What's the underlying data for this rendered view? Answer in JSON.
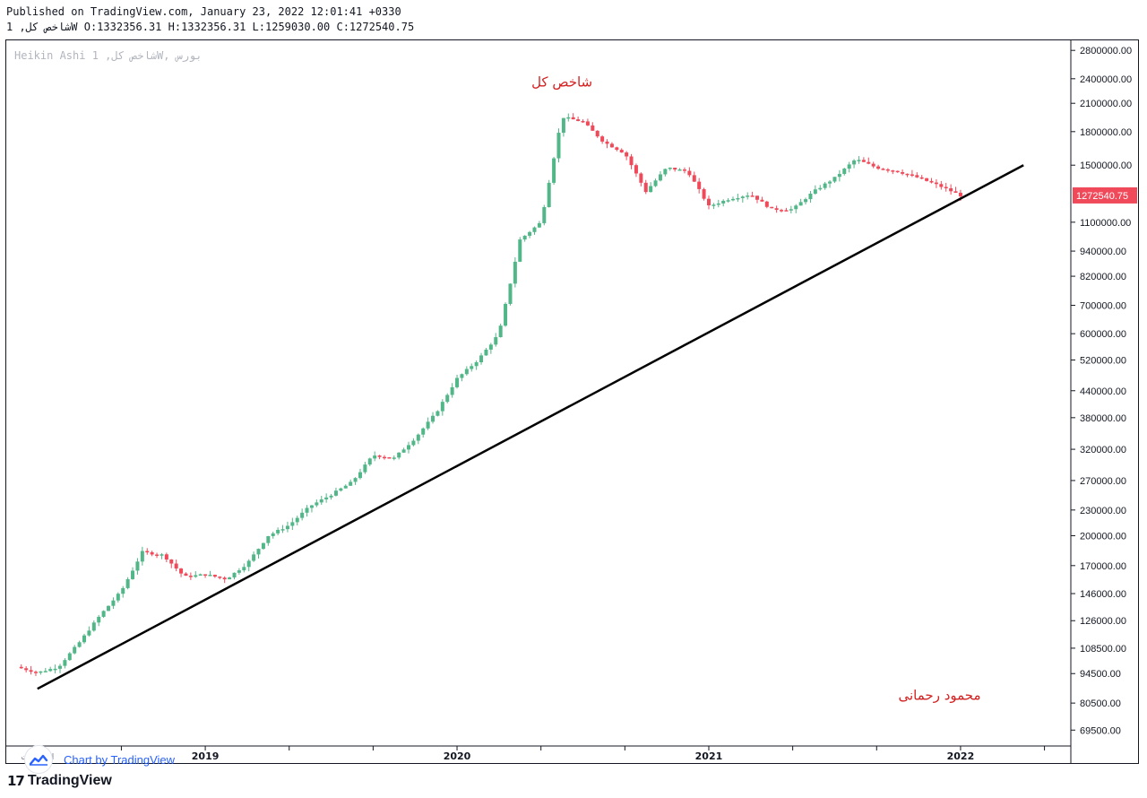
{
  "header": {
    "published": "Published on TradingView.com, January 23, 2022 12:01:41 +0330",
    "ohlc_line": "شاخص کل, 1W O:1332356.31 H:1332356.31 L:1259030.00 C:1272540.75"
  },
  "watermark": "Heikin Ashi شاخص کل, 1W, بورس",
  "attribution": {
    "text": "Chart by TradingView",
    "icon": "tradingview-cloud-icon"
  },
  "brand": {
    "mark": "17",
    "name": "TradingView"
  },
  "colors": {
    "up": "#52b788",
    "down": "#f04a5a",
    "trendline": "#000000",
    "annotation": "#d42020",
    "price_label_bg": "#f04a5a"
  },
  "chart_data": {
    "type": "candlestick",
    "style": "Heikin Ashi",
    "symbol": "شاخص کل",
    "interval": "1W",
    "ohlc_last": {
      "open": 1332356.31,
      "high": 1332356.31,
      "low": 1259030.0,
      "close": 1272540.75
    },
    "last_price_label": "1272540.75",
    "y_axis": {
      "scale": "log",
      "ticks": [
        "2800000.00",
        "2400000.00",
        "2100000.00",
        "1800000.00",
        "1500000.00",
        "1100000.00",
        "940000.00",
        "820000.00",
        "700000.00",
        "600000.00",
        "520000.00",
        "440000.00",
        "380000.00",
        "320000.00",
        "270000.00",
        "230000.00",
        "200000.00",
        "170000.00",
        "146000.00",
        "126000.00",
        "108500.00",
        "94500.00",
        "80500.00",
        "69500.00"
      ]
    },
    "x_axis": {
      "ticks": [
        "اردیبهشت",
        "2019",
        "2020",
        "2021",
        "2022"
      ],
      "range": [
        "2018-04",
        "2022-06"
      ]
    },
    "annotations": [
      {
        "text": "شاخص کل",
        "at": [
          "2020-06",
          2300000
        ]
      },
      {
        "text": "محمود رحمانی",
        "at": [
          "2021-12",
          82000
        ]
      }
    ],
    "trendline": {
      "from": [
        "2018-05",
        87000
      ],
      "to": [
        "2022-04",
        1500000
      ]
    },
    "series": [
      {
        "name": "Heikin Ashi",
        "anchors": [
          [
            "2018-04",
            98000
          ],
          [
            "2018-05",
            95000
          ],
          [
            "2018-06",
            98000
          ],
          [
            "2018-07",
            112000
          ],
          [
            "2018-08",
            130000
          ],
          [
            "2018-09",
            148000
          ],
          [
            "2018-10",
            183000
          ],
          [
            "2018-11",
            180000
          ],
          [
            "2018-12",
            160000
          ],
          [
            "2019-01",
            162000
          ],
          [
            "2019-02",
            158000
          ],
          [
            "2019-03",
            172000
          ],
          [
            "2019-04",
            200000
          ],
          [
            "2019-05",
            212000
          ],
          [
            "2019-06",
            235000
          ],
          [
            "2019-07",
            250000
          ],
          [
            "2019-08",
            268000
          ],
          [
            "2019-09",
            310000
          ],
          [
            "2019-10",
            305000
          ],
          [
            "2019-11",
            340000
          ],
          [
            "2019-12",
            390000
          ],
          [
            "2020-01",
            470000
          ],
          [
            "2020-02",
            520000
          ],
          [
            "2020-03",
            600000
          ],
          [
            "2020-04",
            1000000
          ],
          [
            "2020-05",
            1100000
          ],
          [
            "2020-06",
            1950000
          ],
          [
            "2020-07",
            1900000
          ],
          [
            "2020-08",
            1700000
          ],
          [
            "2020-09",
            1600000
          ],
          [
            "2020-10",
            1300000
          ],
          [
            "2020-11",
            1480000
          ],
          [
            "2020-12",
            1450000
          ],
          [
            "2021-01",
            1200000
          ],
          [
            "2021-02",
            1250000
          ],
          [
            "2021-03",
            1280000
          ],
          [
            "2021-04",
            1180000
          ],
          [
            "2021-05",
            1180000
          ],
          [
            "2021-06",
            1300000
          ],
          [
            "2021-07",
            1400000
          ],
          [
            "2021-08",
            1550000
          ],
          [
            "2021-09",
            1480000
          ],
          [
            "2021-10",
            1450000
          ],
          [
            "2021-11",
            1400000
          ],
          [
            "2021-12",
            1340000
          ],
          [
            "2022-01",
            1272540.75
          ]
        ]
      }
    ]
  }
}
